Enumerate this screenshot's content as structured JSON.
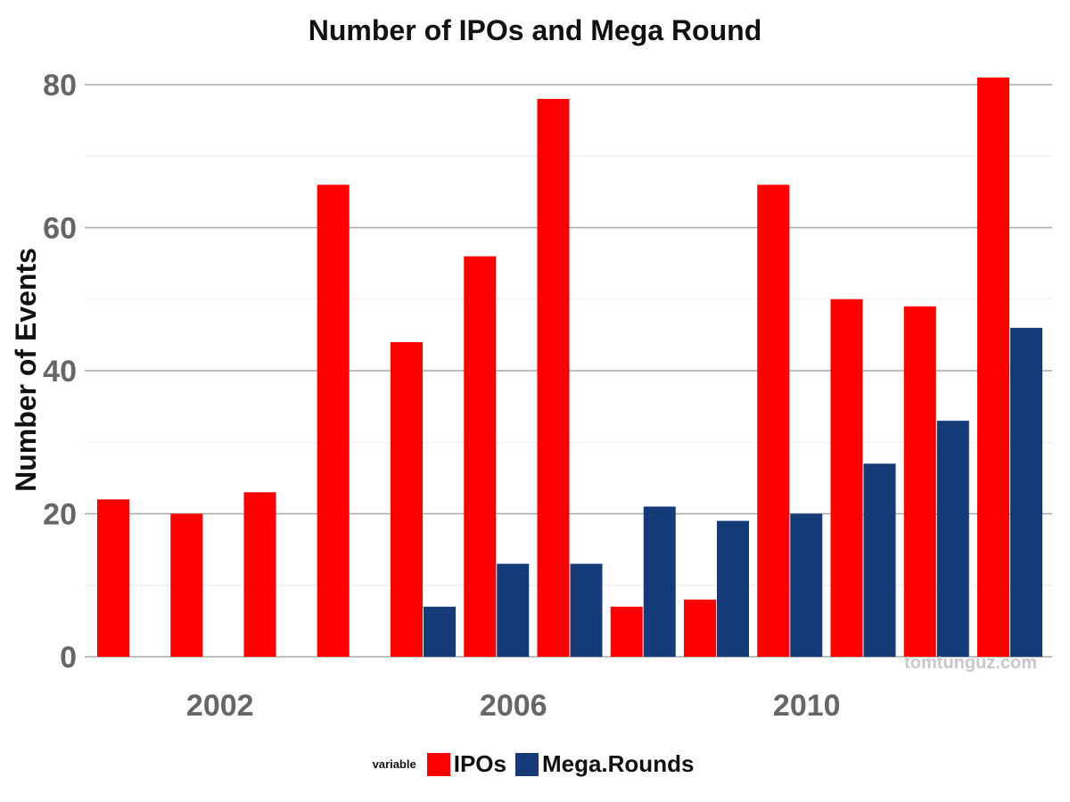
{
  "chart_data": {
    "type": "bar",
    "title": "Number of IPOs and Mega Round",
    "xlabel": "",
    "ylabel": "Number of Events",
    "x": [
      2001,
      2002,
      2003,
      2004,
      2005,
      2006,
      2007,
      2008,
      2009,
      2010,
      2011,
      2012,
      2013
    ],
    "x_ticks": [
      "2002",
      "2006",
      "2010"
    ],
    "y_ticks": [
      "0",
      "20",
      "40",
      "60",
      "80"
    ],
    "ylim": [
      0,
      82
    ],
    "grid": true,
    "legend_position": "bottom",
    "legend_title": "variable",
    "series": [
      {
        "name": "IPOs",
        "color": "#ff0000",
        "values": [
          22,
          20,
          23,
          66,
          44,
          56,
          78,
          7,
          8,
          66,
          50,
          49,
          81
        ]
      },
      {
        "name": "Mega.Rounds",
        "color": "#143a78",
        "values": [
          null,
          null,
          null,
          null,
          7,
          13,
          13,
          21,
          19,
          20,
          27,
          33,
          46
        ]
      }
    ],
    "annotations": [
      "tomtunguz.com"
    ]
  }
}
